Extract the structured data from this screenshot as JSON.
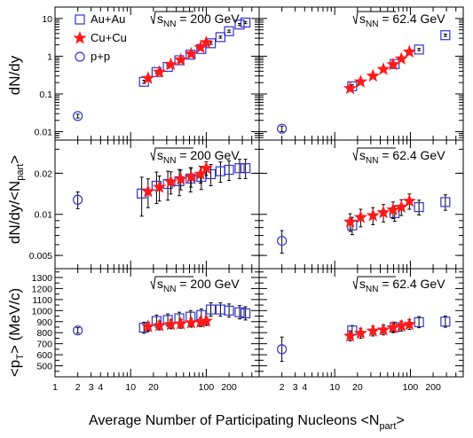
{
  "figure": {
    "x_axis_title": "Average Number of Participating Nucleons <N",
    "x_axis_title_sub": "part",
    "x_axis_title_end": ">",
    "legend": [
      {
        "label": "Au+Au",
        "marker": "open-square",
        "color": "#3333cc"
      },
      {
        "label": "Cu+Cu",
        "marker": "filled-star",
        "color": "#ff1a1a"
      },
      {
        "label": "p+p",
        "marker": "open-circle",
        "color": "#3333cc"
      }
    ],
    "energy_labels": {
      "left": {
        "prefix": "s",
        "sub": "NN",
        "value": " = 200 GeV"
      },
      "right": {
        "prefix": "s",
        "sub": "NN",
        "value": " = 62.4 GeV"
      }
    },
    "row_titles": [
      {
        "main": "dN/dy",
        "sub": "",
        "end": ""
      },
      {
        "main": "dN/dy/<N",
        "sub": "part",
        "end": ">"
      },
      {
        "main": "<p",
        "sub": "T",
        "end": "> (MeV/c)"
      }
    ],
    "x_tick_labels": [
      "1",
      "2",
      "3",
      "4",
      "10",
      "20",
      "100",
      "200"
    ],
    "colors": {
      "au": "#3333cc",
      "cu": "#ff1a1a",
      "pp": "#3333cc"
    }
  },
  "chart_data": [
    {
      "type": "scatter",
      "panel": "dN/dy, 200 GeV",
      "energy": "200 GeV",
      "y_scale": "log",
      "x_scale": "log",
      "xlim": [
        1,
        500
      ],
      "ylim": [
        0.006,
        20
      ],
      "y_ticks": [
        0.01,
        0.1,
        1,
        10
      ],
      "y_tick_labels": [
        "0.01",
        "0.1",
        "1",
        "10"
      ],
      "series": [
        {
          "name": "Au+Au",
          "x": [
            15,
            22,
            31,
            44,
            62,
            86,
            115,
            154,
            200,
            276,
            330
          ],
          "y": [
            0.21,
            0.38,
            0.52,
            0.78,
            1.1,
            1.55,
            2.2,
            3.2,
            4.6,
            6.9,
            7.8
          ],
          "yerr": [
            0.02,
            0.03,
            0.04,
            0.06,
            0.08,
            0.11,
            0.15,
            0.2,
            0.3,
            0.45,
            0.5
          ]
        },
        {
          "name": "Cu+Cu",
          "x": [
            17,
            24,
            34,
            46,
            63,
            84,
            100
          ],
          "y": [
            0.26,
            0.38,
            0.6,
            0.8,
            1.15,
            1.7,
            2.3
          ],
          "yerr": [
            0.02,
            0.03,
            0.04,
            0.06,
            0.08,
            0.11,
            0.15
          ]
        },
        {
          "name": "p+p",
          "x": [
            2
          ],
          "y": [
            0.026
          ],
          "yerr": [
            0.003
          ]
        }
      ]
    },
    {
      "type": "scatter",
      "panel": "dN/dy, 62.4 GeV",
      "energy": "62.4 GeV",
      "y_scale": "log",
      "x_scale": "log",
      "xlim": [
        1,
        500
      ],
      "ylim": [
        0.006,
        20
      ],
      "y_ticks": [
        0.01,
        0.1,
        1,
        10
      ],
      "series": [
        {
          "name": "Au+Au",
          "x": [
            17,
            62,
            130,
            290
          ],
          "y": [
            0.16,
            0.62,
            1.5,
            3.6
          ],
          "yerr": [
            0.015,
            0.05,
            0.1,
            0.25
          ]
        },
        {
          "name": "Cu+Cu",
          "x": [
            16,
            22,
            32,
            44,
            59,
            76,
            97
          ],
          "y": [
            0.14,
            0.21,
            0.3,
            0.45,
            0.6,
            0.85,
            1.3
          ],
          "yerr": [
            0.015,
            0.02,
            0.03,
            0.04,
            0.05,
            0.07,
            0.1
          ]
        },
        {
          "name": "p+p",
          "x": [
            2
          ],
          "y": [
            0.012
          ],
          "yerr": [
            0.002
          ]
        }
      ]
    },
    {
      "type": "scatter",
      "panel": "dN/dy/<Npart>, 200 GeV",
      "energy": "200 GeV",
      "y_scale": "log",
      "x_scale": "log",
      "xlim": [
        1,
        500
      ],
      "ylim": [
        0.004,
        0.035
      ],
      "y_ticks": [
        0.005,
        0.01,
        0.02
      ],
      "y_tick_labels": [
        "0.005",
        "0.01",
        "0.02"
      ],
      "series": [
        {
          "name": "Au+Au",
          "x": [
            14,
            22,
            31,
            44,
            62,
            86,
            115,
            154,
            200,
            276,
            330
          ],
          "y": [
            0.0142,
            0.0162,
            0.0167,
            0.0175,
            0.0183,
            0.0188,
            0.0197,
            0.0207,
            0.0212,
            0.0218,
            0.0218
          ],
          "yerr": [
            0.0045,
            0.0042,
            0.004,
            0.0038,
            0.0037,
            0.0036,
            0.0035,
            0.0035,
            0.0035,
            0.0035,
            0.0035
          ]
        },
        {
          "name": "Cu+Cu",
          "x": [
            17,
            24,
            34,
            46,
            63,
            84,
            100
          ],
          "y": [
            0.0147,
            0.0158,
            0.0173,
            0.0181,
            0.0188,
            0.0197,
            0.0218
          ],
          "yerr": [
            0.0035,
            0.0033,
            0.0032,
            0.003,
            0.003,
            0.0028,
            0.0025
          ]
        },
        {
          "name": "p+p",
          "x": [
            2
          ],
          "y": [
            0.0128
          ],
          "yerr": [
            0.0018
          ]
        }
      ]
    },
    {
      "type": "scatter",
      "panel": "dN/dy/<Npart>, 62.4 GeV",
      "energy": "62.4 GeV",
      "y_scale": "log",
      "x_scale": "log",
      "xlim": [
        1,
        500
      ],
      "ylim": [
        0.004,
        0.035
      ],
      "y_ticks": [
        0.005,
        0.01,
        0.02
      ],
      "series": [
        {
          "name": "Au+Au",
          "x": [
            17,
            62,
            130,
            290
          ],
          "y": [
            0.0083,
            0.0102,
            0.0113,
            0.0123
          ],
          "yerr": [
            0.0012,
            0.0013,
            0.0014,
            0.0016
          ]
        },
        {
          "name": "Cu+Cu",
          "x": [
            16,
            22,
            32,
            44,
            59,
            76,
            97
          ],
          "y": [
            0.0088,
            0.0095,
            0.0098,
            0.0103,
            0.0108,
            0.0113,
            0.0125
          ],
          "yerr": [
            0.0013,
            0.0014,
            0.0014,
            0.0015,
            0.0015,
            0.0015,
            0.0016
          ]
        },
        {
          "name": "p+p",
          "x": [
            2
          ],
          "y": [
            0.0064
          ],
          "yerr": [
            0.0012
          ]
        }
      ]
    },
    {
      "type": "scatter",
      "panel": "<pT>, 200 GeV",
      "energy": "200 GeV",
      "y_scale": "linear",
      "x_scale": "log",
      "xlim": [
        1,
        500
      ],
      "ylim": [
        400,
        1380
      ],
      "y_ticks": [
        500,
        600,
        700,
        800,
        900,
        1000,
        1100,
        1200,
        1300
      ],
      "y_tick_labels": [
        "500",
        "600",
        "700",
        "800",
        "900",
        "1000",
        "1100",
        "1200",
        "1300"
      ],
      "series": [
        {
          "name": "Au+Au",
          "x": [
            15,
            22,
            31,
            44,
            62,
            86,
            115,
            154,
            200,
            276,
            330
          ],
          "y": [
            845,
            905,
            915,
            930,
            945,
            960,
            1010,
            1010,
            1000,
            985,
            975
          ],
          "yerr": [
            50,
            55,
            55,
            55,
            55,
            55,
            60,
            60,
            60,
            60,
            60
          ]
        },
        {
          "name": "Cu+Cu",
          "x": [
            17,
            24,
            34,
            46,
            63,
            84,
            100
          ],
          "y": [
            855,
            865,
            875,
            880,
            890,
            895,
            905
          ],
          "yerr": [
            40,
            40,
            40,
            40,
            40,
            40,
            40
          ]
        },
        {
          "name": "p+p",
          "x": [
            2
          ],
          "y": [
            820
          ],
          "yerr": [
            25
          ]
        }
      ]
    },
    {
      "type": "scatter",
      "panel": "<pT>, 62.4 GeV",
      "energy": "62.4 GeV",
      "y_scale": "linear",
      "x_scale": "log",
      "xlim": [
        1,
        500
      ],
      "ylim": [
        400,
        1380
      ],
      "y_ticks": [
        500,
        600,
        700,
        800,
        900,
        1000,
        1100,
        1200,
        1300
      ],
      "series": [
        {
          "name": "Au+Au",
          "x": [
            17,
            62,
            130,
            290
          ],
          "y": [
            820,
            850,
            895,
            900
          ],
          "yerr": [
            45,
            45,
            50,
            50
          ]
        },
        {
          "name": "Cu+Cu",
          "x": [
            16,
            22,
            32,
            44,
            59,
            76,
            97
          ],
          "y": [
            770,
            795,
            815,
            825,
            845,
            860,
            875
          ],
          "yerr": [
            45,
            45,
            45,
            45,
            45,
            45,
            45
          ]
        },
        {
          "name": "p+p",
          "x": [
            2
          ],
          "y": [
            650
          ],
          "yerr": [
            110
          ]
        }
      ]
    }
  ]
}
